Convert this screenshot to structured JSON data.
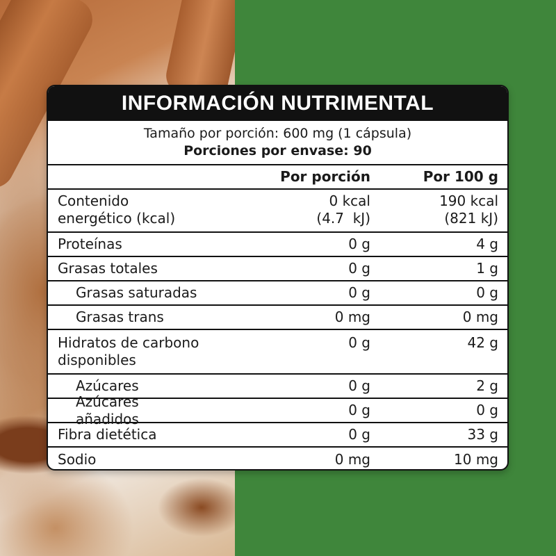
{
  "label": {
    "title": "INFORMACIÓN NUTRIMENTAL",
    "serving_size": "Tamaño por porción: 600 mg (1 cápsula)",
    "servings_per_container": "Porciones por envase: 90",
    "columns": [
      "",
      "Por porción",
      "Por 100 g"
    ],
    "rows": [
      {
        "name": "Contenido",
        "name2": "energético (kcal)",
        "per_serving": "0 kcal",
        "per_serving2": "(4.7  kJ)",
        "per_100g": "190 kcal",
        "per_100g2": "(821 kJ)"
      },
      {
        "name": "Proteínas",
        "per_serving": "0 g",
        "per_100g": "4 g"
      },
      {
        "name": "Grasas totales",
        "per_serving": "0 g",
        "per_100g": "1 g"
      },
      {
        "name": "Grasas saturadas",
        "per_serving": "0 g",
        "per_100g": "0 g"
      },
      {
        "name": "Grasas trans",
        "per_serving": "0 mg",
        "per_100g": "0 mg"
      },
      {
        "name": "Hidratos de carbono",
        "name2": "disponibles",
        "per_serving": "0 g",
        "per_100g": "42 g"
      },
      {
        "name": "Azúcares",
        "per_serving": "0 g",
        "per_100g": "2 g"
      },
      {
        "name": "Azúcares añadidos",
        "per_serving": "0 g",
        "per_100g": "0 g"
      },
      {
        "name": "Fibra dietética",
        "per_serving": "0 g",
        "per_100g": "33 g"
      },
      {
        "name": "Sodio",
        "per_serving": "0 mg",
        "per_100g": "10 mg"
      }
    ]
  },
  "colors": {
    "background_green": "#3f863b",
    "header_black": "#111111"
  }
}
